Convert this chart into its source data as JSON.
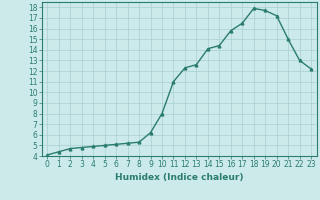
{
  "x": [
    0,
    1,
    2,
    3,
    4,
    5,
    6,
    7,
    8,
    9,
    10,
    11,
    12,
    13,
    14,
    15,
    16,
    17,
    18,
    19,
    20,
    21,
    22,
    23
  ],
  "y": [
    4.1,
    4.4,
    4.7,
    4.8,
    4.9,
    5.0,
    5.1,
    5.2,
    5.3,
    6.2,
    8.0,
    11.0,
    12.3,
    12.6,
    14.1,
    14.4,
    15.8,
    16.5,
    17.9,
    17.7,
    17.2,
    15.0,
    13.0,
    12.2
  ],
  "line_color": "#2a7d6e",
  "marker": "^",
  "marker_size": 2,
  "bg_color": "#cdeaea",
  "grid_color": "#a8cece",
  "xlabel": "Humidex (Indice chaleur)",
  "ylabel": "",
  "xlim": [
    -0.5,
    23.5
  ],
  "ylim": [
    4,
    18.5
  ],
  "yticks": [
    4,
    5,
    6,
    7,
    8,
    9,
    10,
    11,
    12,
    13,
    14,
    15,
    16,
    17,
    18
  ],
  "xticks": [
    0,
    1,
    2,
    3,
    4,
    5,
    6,
    7,
    8,
    9,
    10,
    11,
    12,
    13,
    14,
    15,
    16,
    17,
    18,
    19,
    20,
    21,
    22,
    23
  ],
  "tick_fontsize": 5.5,
  "label_fontsize": 6.5,
  "line_width": 1.0
}
